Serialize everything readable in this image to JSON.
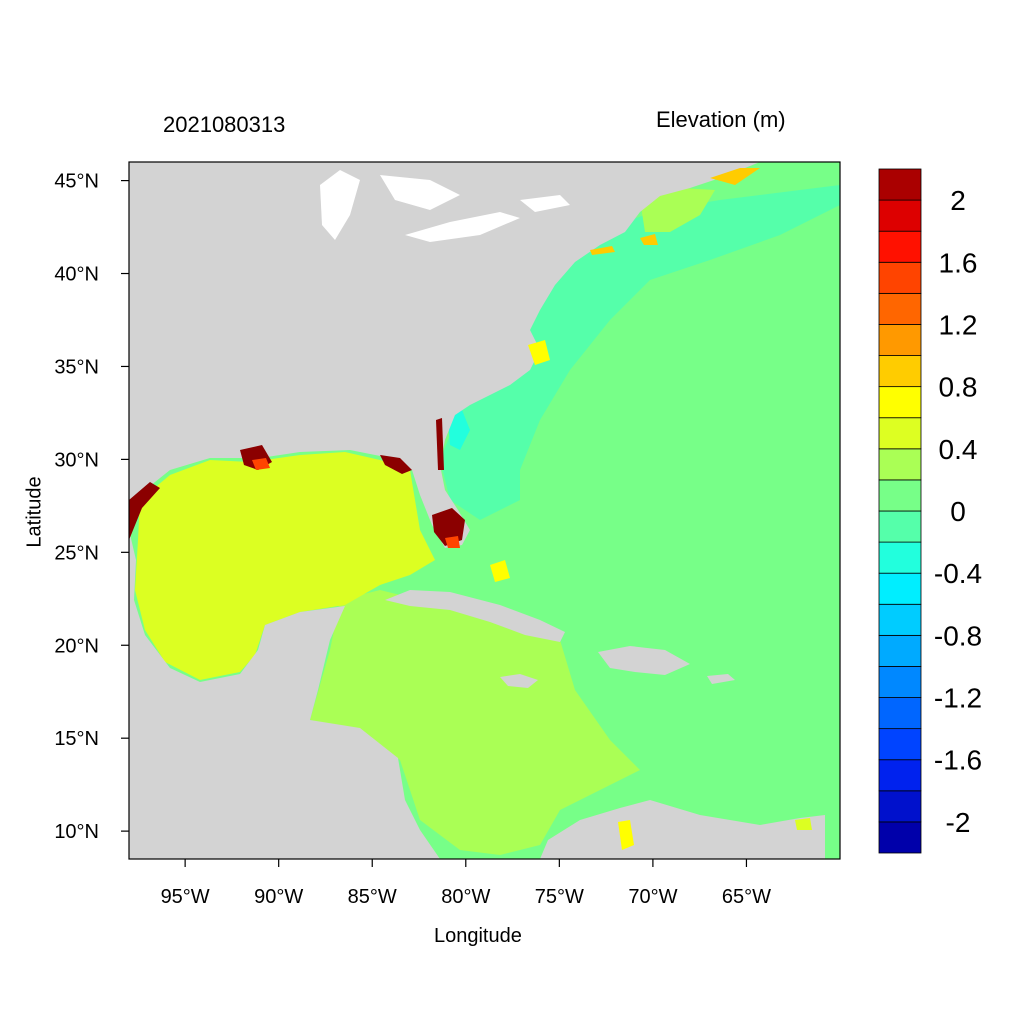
{
  "left_title": "2021080313",
  "right_title": "Elevation (m)",
  "x_axis": {
    "label": "Longitude",
    "range": [
      -98,
      -60
    ],
    "ticks": [
      -95,
      -90,
      -85,
      -80,
      -75,
      -70,
      -65
    ],
    "tick_labels": [
      "95°W",
      "90°W",
      "85°W",
      "80°W",
      "75°W",
      "70°W",
      "65°W"
    ]
  },
  "y_axis": {
    "label": "Latitude",
    "range": [
      8.5,
      46
    ],
    "ticks": [
      10,
      15,
      20,
      25,
      30,
      35,
      40,
      45
    ],
    "tick_labels": [
      "10°N",
      "15°N",
      "20°N",
      "25°N",
      "30°N",
      "35°N",
      "40°N",
      "45°N"
    ]
  },
  "colorbar": {
    "bins": 22,
    "colors": [
      "#0000aa",
      "#0011cc",
      "#0022ee",
      "#0044ff",
      "#0066ff",
      "#0088ff",
      "#00aaff",
      "#00ccff",
      "#00eeff",
      "#22ffdd",
      "#55ffaa",
      "#77ff88",
      "#aaff55",
      "#ddff22",
      "#ffff00",
      "#ffcc00",
      "#ff9900",
      "#ff6600",
      "#ff4400",
      "#ff1100",
      "#dd0000",
      "#aa0000"
    ],
    "labels": [
      "-2",
      "-1.6",
      "-1.2",
      "-0.8",
      "-0.4",
      "0",
      "0.4",
      "0.8",
      "1.2",
      "1.6",
      "2"
    ]
  },
  "colors": {
    "land": "#d3d3d3",
    "gulf": "#dcff22",
    "caribbean": "#aaff55",
    "atlantic": "#77ff88",
    "shelf": "#55ffaa",
    "nearshore": "#22ffdd",
    "surge_high": "#8b0000",
    "surge_mid": "#ff4400",
    "surge_low": "#ffcc00",
    "surge_yellow": "#ffff00"
  }
}
